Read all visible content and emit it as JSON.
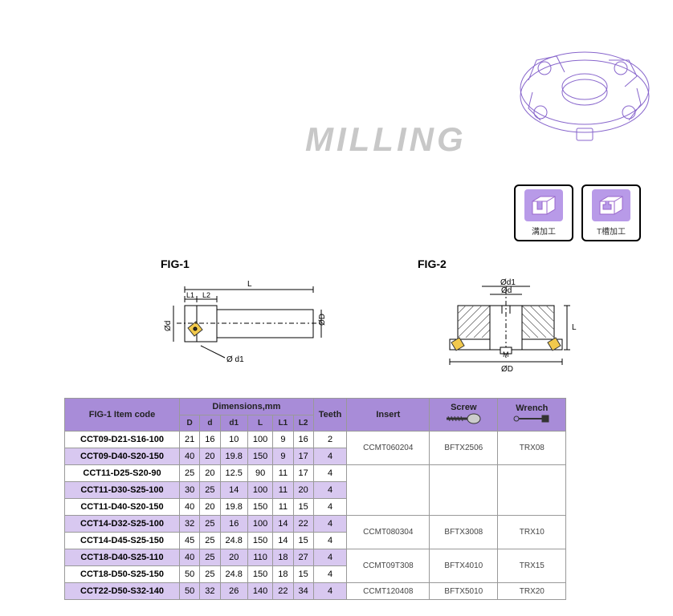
{
  "title": "MILLING",
  "title_color": "#c8c8c8",
  "icons": [
    {
      "label": "溝加工",
      "shape": "groove"
    },
    {
      "label": "T槽加工",
      "shape": "tslot"
    }
  ],
  "fig1_label": "FIG-1",
  "fig2_label": "FIG-2",
  "fig1_annotations": {
    "L": "L",
    "L1": "L1",
    "L2": "L2",
    "D": "ØD",
    "d": "Ød",
    "d1": "Ø d1"
  },
  "fig2_annotations": {
    "D": "ØD",
    "d": "Ød",
    "d1": "Ød1",
    "L": "L",
    "M": "M"
  },
  "table": {
    "header_bg": "#a88cd8",
    "shaded_bg": "#d8c8f0",
    "col_itemcode": "FIG-1 Item code",
    "col_dimensions": "Dimensions,mm",
    "col_teeth": "Teeth",
    "col_insert": "Insert",
    "col_screw": "Screw",
    "col_wrench": "Wrench",
    "subcols": [
      "D",
      "d",
      "d1",
      "L",
      "L1",
      "L2"
    ],
    "rows": [
      {
        "code": "CCT09-D21-S16-100",
        "D": "21",
        "d": "16",
        "d1": "10",
        "L": "100",
        "L1": "9",
        "L2": "16",
        "teeth": "2",
        "insert": "CCMT060204",
        "screw": "BFTX2506",
        "wrench": "TRX08",
        "shaded": false,
        "span": 2
      },
      {
        "code": "CCT09-D40-S20-150",
        "D": "40",
        "d": "20",
        "d1": "19.8",
        "L": "150",
        "L1": "9",
        "L2": "17",
        "teeth": "4",
        "shaded": true
      },
      {
        "code": "CCT11-D25-S20-90",
        "D": "25",
        "d": "20",
        "d1": "12.5",
        "L": "90",
        "L1": "11",
        "L2": "17",
        "teeth": "4",
        "insert": "",
        "screw": "",
        "wrench": "",
        "shaded": false,
        "span": 3
      },
      {
        "code": "CCT11-D30-S25-100",
        "D": "30",
        "d": "25",
        "d1": "14",
        "L": "100",
        "L1": "11",
        "L2": "20",
        "teeth": "4",
        "shaded": true
      },
      {
        "code": "CCT11-D40-S20-150",
        "D": "40",
        "d": "20",
        "d1": "19.8",
        "L": "150",
        "L1": "11",
        "L2": "15",
        "teeth": "4",
        "shaded": false
      },
      {
        "code": "CCT14-D32-S25-100",
        "D": "32",
        "d": "25",
        "d1": "16",
        "L": "100",
        "L1": "14",
        "L2": "22",
        "teeth": "4",
        "insert": "CCMT080304",
        "screw": "BFTX3008",
        "wrench": "TRX10",
        "shaded": true,
        "span": 2
      },
      {
        "code": "CCT14-D45-S25-150",
        "D": "45",
        "d": "25",
        "d1": "24.8",
        "L": "150",
        "L1": "14",
        "L2": "15",
        "teeth": "4",
        "shaded": false
      },
      {
        "code": "CCT18-D40-S25-110",
        "D": "40",
        "d": "25",
        "d1": "20",
        "L": "110",
        "L1": "18",
        "L2": "27",
        "teeth": "4",
        "insert": "CCMT09T308",
        "screw": "BFTX4010",
        "wrench": "TRX15",
        "shaded": true,
        "span": 2
      },
      {
        "code": "CCT18-D50-S25-150",
        "D": "50",
        "d": "25",
        "d1": "24.8",
        "L": "150",
        "L1": "18",
        "L2": "15",
        "teeth": "4",
        "shaded": false
      },
      {
        "code": "CCT22-D50-S32-140",
        "D": "50",
        "d": "32",
        "d1": "26",
        "L": "140",
        "L1": "22",
        "L2": "34",
        "teeth": "4",
        "insert": "CCMT120408",
        "screw": "BFTX5010",
        "wrench": "TRX20",
        "shaded": true,
        "span": 1
      }
    ]
  }
}
